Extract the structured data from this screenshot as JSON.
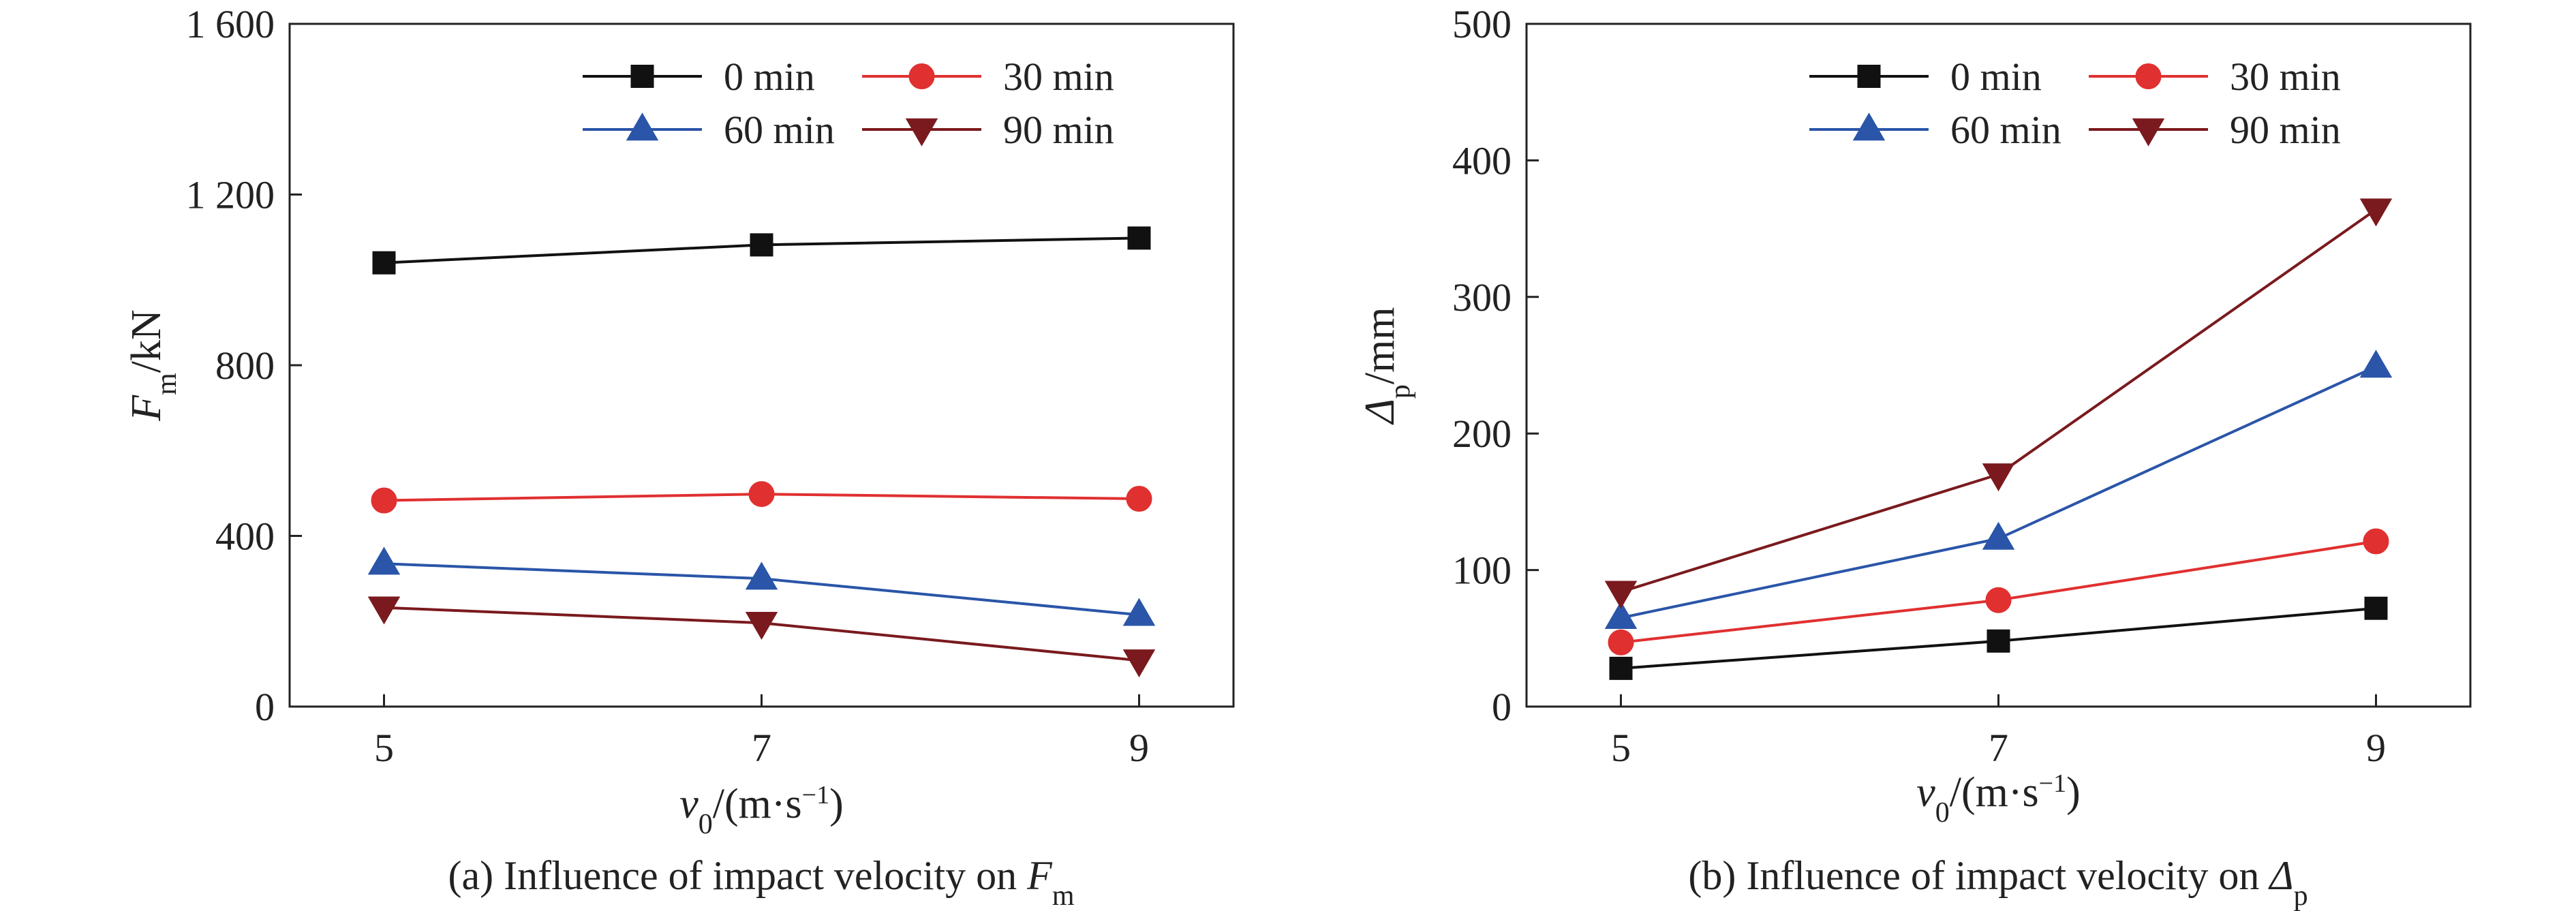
{
  "chart_data": [
    {
      "type": "line",
      "panel": "a",
      "caption": {
        "prefix": "(a) Influence of impact velocity on ",
        "symbol": "F",
        "sub": "m"
      },
      "ylabel": {
        "symbol": "F",
        "sub": "m",
        "unit": "/kN"
      },
      "xlabel": {
        "symbol": "v",
        "sub": "0",
        "unit_pre": "/(m·s",
        "sup": "−1",
        "unit_post": ")"
      },
      "x": [
        5,
        7,
        9
      ],
      "xticks": [
        "5",
        "7",
        "9"
      ],
      "xlim": [
        4.5,
        9.5
      ],
      "ylim": [
        0,
        1600
      ],
      "yticks": [
        0,
        400,
        800,
        1200,
        1600
      ],
      "ytick_labels": [
        "0",
        "400",
        "800",
        "1 200",
        "1 600"
      ],
      "legend": "top-right",
      "grid": false,
      "series": [
        {
          "name": "0 min",
          "values": [
            1040,
            1082,
            1098
          ],
          "color": "#111111",
          "marker": "square"
        },
        {
          "name": "30 min",
          "values": [
            483,
            498,
            487
          ],
          "color": "#e03030",
          "marker": "circle"
        },
        {
          "name": "60 min",
          "values": [
            335,
            300,
            215
          ],
          "color": "#2a55a8",
          "marker": "triangle-up"
        },
        {
          "name": "90 min",
          "values": [
            232,
            196,
            108
          ],
          "color": "#7a1a1e",
          "marker": "triangle-down"
        }
      ]
    },
    {
      "type": "line",
      "panel": "b",
      "caption": {
        "prefix": "(b) Influence of impact velocity on ",
        "symbol": "Δ",
        "sub": "p"
      },
      "ylabel": {
        "symbol": "Δ",
        "sub": "p",
        "unit": "/mm"
      },
      "xlabel": {
        "symbol": "v",
        "sub": "0",
        "unit_pre": "/(m·s",
        "sup": "−1",
        "unit_post": ")"
      },
      "x": [
        5,
        7,
        9
      ],
      "xticks": [
        "5",
        "7",
        "9"
      ],
      "xlim": [
        4.5,
        9.5
      ],
      "ylim": [
        0,
        500
      ],
      "yticks": [
        0,
        100,
        200,
        300,
        400,
        500
      ],
      "ytick_labels": [
        "0",
        "100",
        "200",
        "300",
        "400",
        "500"
      ],
      "legend": "top-right",
      "grid": false,
      "series": [
        {
          "name": "0 min",
          "values": [
            28,
            48,
            72
          ],
          "color": "#111111",
          "marker": "square"
        },
        {
          "name": "30 min",
          "values": [
            47,
            78,
            121
          ],
          "color": "#e03030",
          "marker": "circle"
        },
        {
          "name": "60 min",
          "values": [
            65,
            123,
            249
          ],
          "color": "#2a55a8",
          "marker": "triangle-up"
        },
        {
          "name": "90 min",
          "values": [
            84,
            170,
            364
          ],
          "color": "#7a1a1e",
          "marker": "triangle-down"
        }
      ]
    }
  ]
}
